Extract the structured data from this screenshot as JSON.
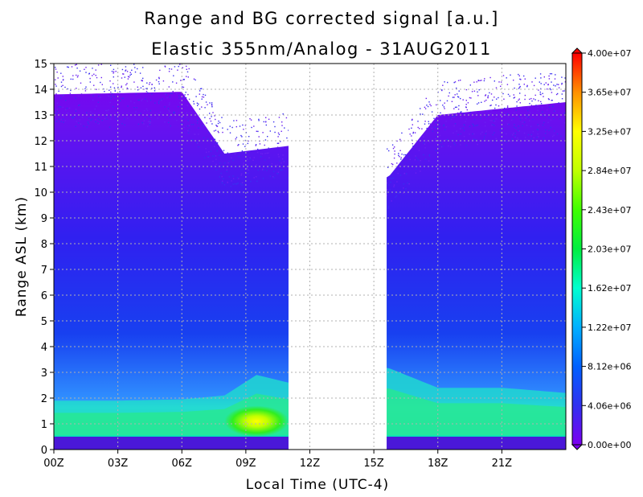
{
  "chart_data": {
    "type": "heatmap",
    "title": "Range and BG corrected signal [a.u.]",
    "subtitle": "Elastic 355nm/Analog - 31AUG2011",
    "xlabel": "Local Time (UTC-4)",
    "ylabel": "Range ASL (km)",
    "x_ticks": [
      "00Z",
      "03Z",
      "06Z",
      "09Z",
      "12Z",
      "15Z",
      "18Z",
      "21Z"
    ],
    "x_range_hours": [
      0,
      24
    ],
    "y_ticks": [
      "0",
      "1",
      "2",
      "3",
      "4",
      "5",
      "6",
      "7",
      "8",
      "9",
      "10",
      "11",
      "12",
      "13",
      "14",
      "15"
    ],
    "ylim": [
      0,
      15
    ],
    "grid": true,
    "no_data_interval_hours": [
      11,
      15.6
    ],
    "colorbar": {
      "min": 0,
      "max": 40000000,
      "tick_labels": [
        "0.00e+00",
        "4.06e+06",
        "8.12e+06",
        "1.22e+07",
        "1.62e+07",
        "2.03e+07",
        "2.43e+07",
        "2.84e+07",
        "3.25e+07",
        "3.65e+07",
        "4.00e+07"
      ],
      "colors": [
        "#7b00f0",
        "#3030f0",
        "#0060ff",
        "#00b0ff",
        "#00ffd0",
        "#00ee40",
        "#40ff00",
        "#c0ff00",
        "#ffff00",
        "#ff9000",
        "#ff0000"
      ]
    },
    "boundary_layer_height_km": [
      {
        "time_h": 0,
        "height_km": 1.9
      },
      {
        "time_h": 3,
        "height_km": 1.9
      },
      {
        "time_h": 6,
        "height_km": 1.95
      },
      {
        "time_h": 8,
        "height_km": 2.1
      },
      {
        "time_h": 9.5,
        "height_km": 2.9
      },
      {
        "time_h": 11,
        "height_km": 2.6
      },
      {
        "time_h": 15.6,
        "height_km": 3.2
      },
      {
        "time_h": 18,
        "height_km": 2.4
      },
      {
        "time_h": 21,
        "height_km": 2.4
      },
      {
        "time_h": 24,
        "height_km": 2.2
      }
    ],
    "signal_top_km": [
      {
        "time_h": 0,
        "height_km": 12.8
      },
      {
        "time_h": 6,
        "height_km": 12.9
      },
      {
        "time_h": 8,
        "height_km": 10.5
      },
      {
        "time_h": 11,
        "height_km": 10.8
      },
      {
        "time_h": 15.6,
        "height_km": 9.5
      },
      {
        "time_h": 18,
        "height_km": 12.0
      },
      {
        "time_h": 24,
        "height_km": 12.5
      }
    ],
    "peak_signal_region": {
      "time_h": [
        8.0,
        11.0
      ],
      "height_km": [
        0.5,
        1.7
      ],
      "value": 30000000
    }
  }
}
